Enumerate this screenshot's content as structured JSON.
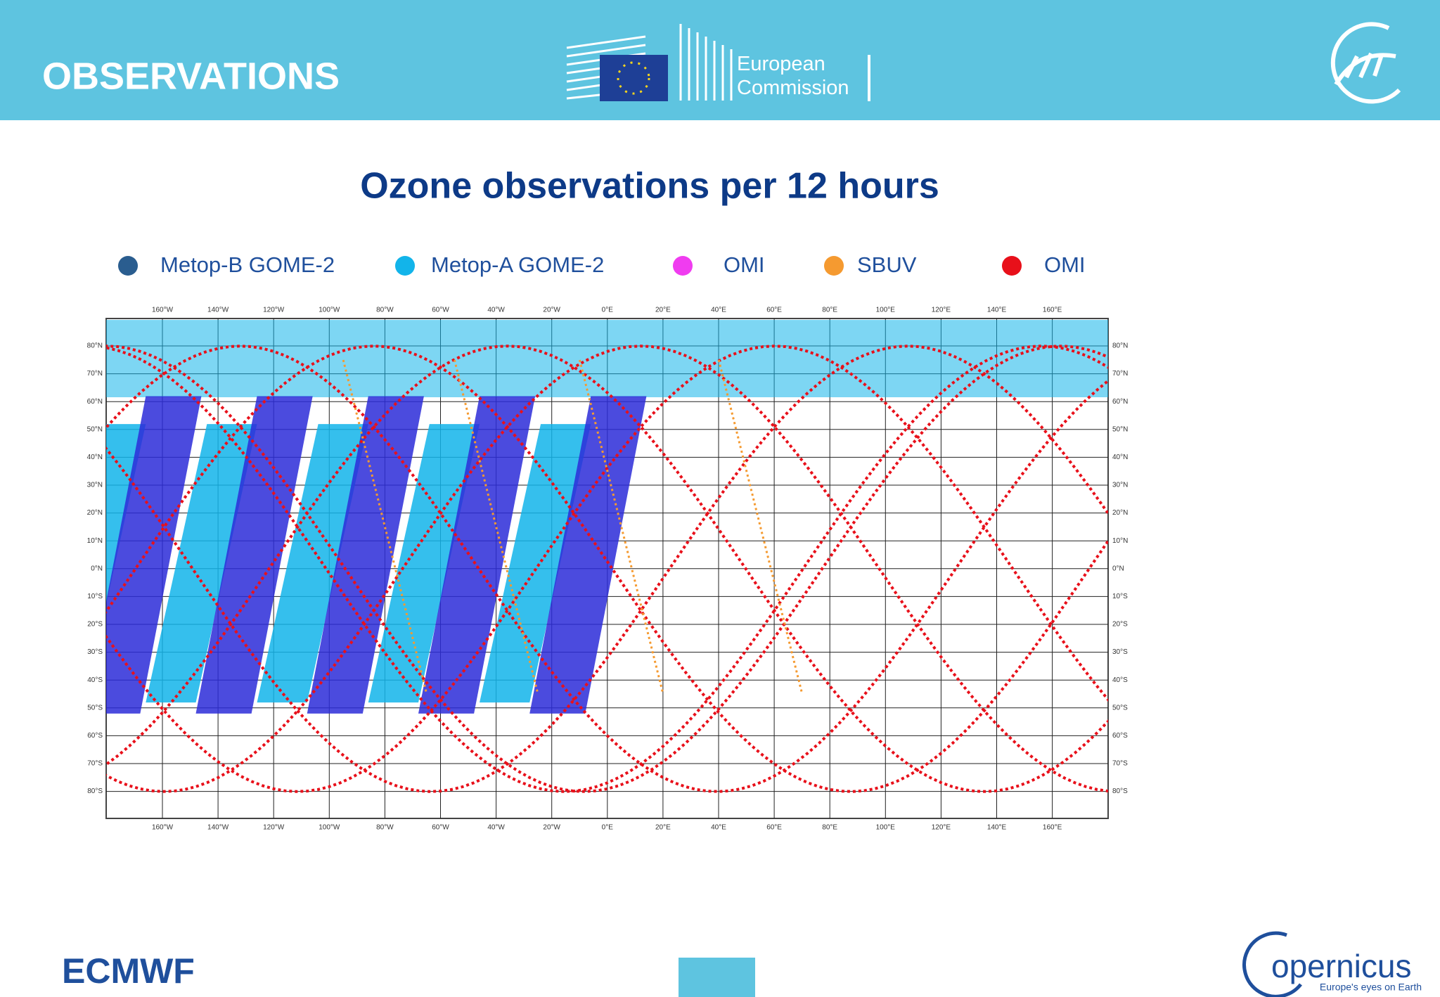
{
  "header": {
    "title": "OBSERVATIONS",
    "logo_text": [
      "European",
      "Commission"
    ]
  },
  "slide": {
    "title": "Ozone observations per 12 hours",
    "legend": [
      {
        "label": "Metop-B GOME-2",
        "color": "#2a5d8f"
      },
      {
        "label": "Metop-A GOME-2",
        "color": "#12b4ea"
      },
      {
        "label": "OMI",
        "color": "#f03cf0"
      },
      {
        "label": "SBUV",
        "color": "#f59a30"
      },
      {
        "label": "OMI",
        "color": "#e8101a"
      }
    ]
  },
  "map": {
    "lon_labels": [
      "160°W",
      "140°W",
      "120°W",
      "100°W",
      "80°W",
      "60°W",
      "40°W",
      "20°W",
      "0°E",
      "20°E",
      "40°E",
      "60°E",
      "80°E",
      "100°E",
      "120°E",
      "140°E",
      "160°E"
    ],
    "lat_labels": [
      "80°N",
      "70°N",
      "60°N",
      "50°N",
      "40°N",
      "30°N",
      "20°N",
      "10°N",
      "0°N",
      "10°S",
      "20°S",
      "30°S",
      "40°S",
      "50°S",
      "60°S",
      "70°S",
      "80°S"
    ]
  },
  "footer": {
    "left_logo": "ECMWF",
    "right_logo": "opernicus",
    "tagline": "Europe's eyes on Earth"
  }
}
